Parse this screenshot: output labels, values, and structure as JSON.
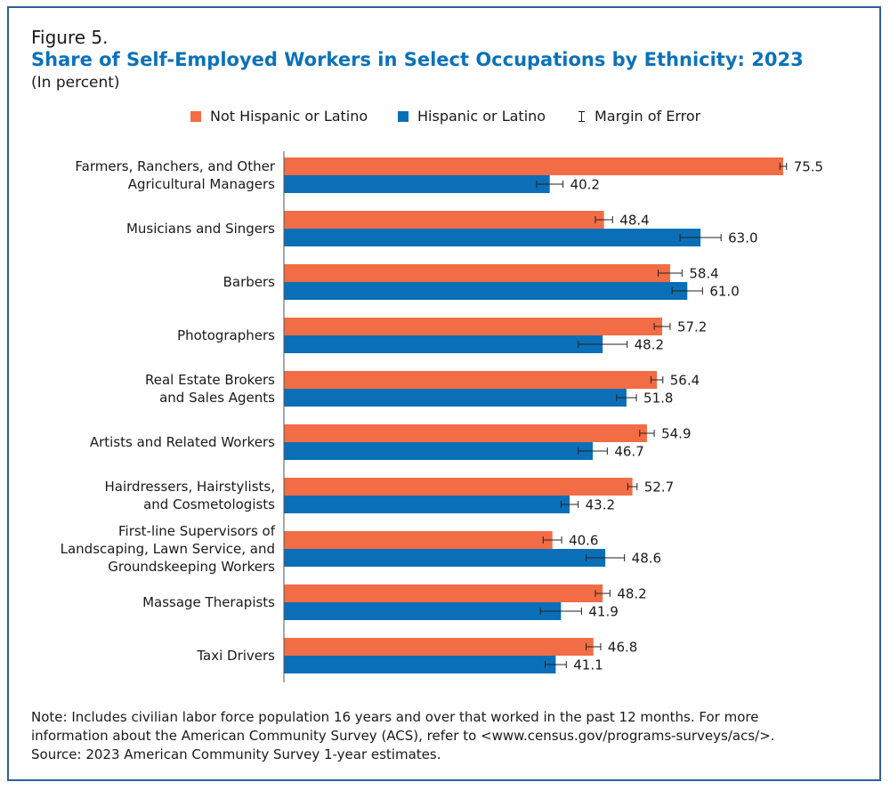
{
  "figure_label": "Figure 5.",
  "title": "Share of Self-Employed Workers in Select Occupations by Ethnicity: 2023",
  "subtitle": "(In percent)",
  "legend": {
    "not_hispanic": "Not Hispanic or Latino",
    "hispanic": "Hispanic or Latino",
    "moe": "Margin of Error"
  },
  "colors": {
    "not_hispanic": "#f26d45",
    "hispanic": "#0b6fb8",
    "axis": "#555555",
    "text": "#1a1a1a"
  },
  "chart_data": {
    "type": "bar",
    "orientation": "horizontal",
    "xlim": [
      0,
      100
    ],
    "categories": [
      [
        "Farmers, Ranchers, and Other",
        "Agricultural Managers"
      ],
      [
        "Musicians and Singers"
      ],
      [
        "Barbers"
      ],
      [
        "Photographers"
      ],
      [
        "Real Estate Brokers",
        "and Sales Agents"
      ],
      [
        "Artists and Related Workers"
      ],
      [
        "Hairdressers, Hairstylists,",
        "and Cosmetologists"
      ],
      [
        "First-line Supervisors of",
        "Landscaping, Lawn Service, and",
        "Groundskeeping Workers"
      ],
      [
        "Massage Therapists"
      ],
      [
        "Taxi Drivers"
      ]
    ],
    "series": [
      {
        "name": "Not Hispanic or Latino",
        "color": "#f26d45",
        "values": [
          75.5,
          48.4,
          58.4,
          57.2,
          56.4,
          54.9,
          52.7,
          40.6,
          48.2,
          46.8
        ],
        "labels": [
          "75.5",
          "48.4",
          "58.4",
          "57.2",
          "56.4",
          "54.9",
          "52.7",
          "40.6",
          "48.2",
          "46.8"
        ],
        "moe": [
          0.5,
          1.3,
          1.8,
          1.2,
          0.9,
          1.1,
          0.7,
          1.4,
          1.1,
          1.1
        ]
      },
      {
        "name": "Hispanic or Latino",
        "color": "#0b6fb8",
        "values": [
          40.2,
          63.0,
          61.0,
          48.2,
          51.8,
          46.7,
          43.2,
          48.6,
          41.9,
          41.1
        ],
        "labels": [
          "40.2",
          "63.0",
          "61.0",
          "48.2",
          "51.8",
          "46.7",
          "43.2",
          "48.6",
          "41.9",
          "41.1"
        ],
        "moe": [
          2.0,
          3.1,
          2.3,
          3.7,
          1.5,
          2.2,
          1.3,
          2.9,
          3.1,
          1.6
        ]
      }
    ]
  },
  "note": {
    "line1": "Note: Includes civilian labor force population 16 years and over that worked in the past 12 months. For more",
    "line2": "information about the American Community Survey (ACS), refer to <www.census.gov/programs-surveys/acs/>.",
    "source": "Source: 2023 American Community Survey 1-year estimates."
  }
}
